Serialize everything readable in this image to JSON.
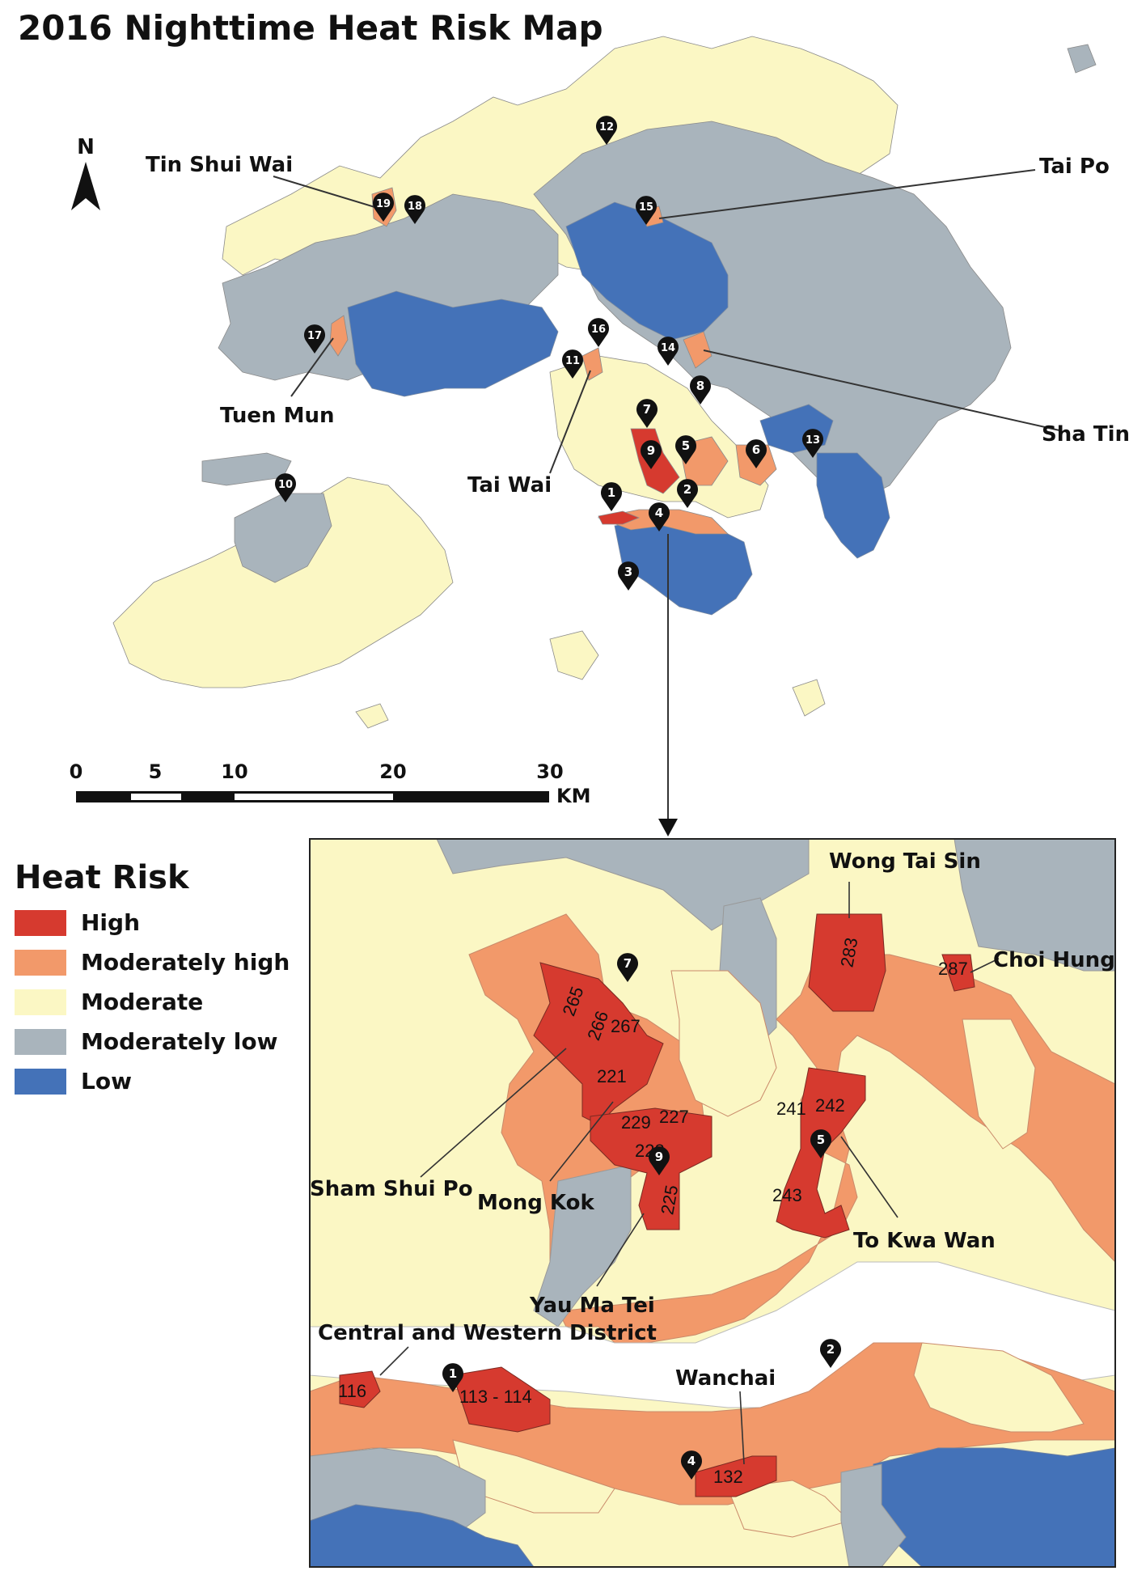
{
  "title": "2016 Nighttime Heat Risk Map",
  "north_label": "N",
  "scale": {
    "ticks": [
      "0",
      "5",
      "10",
      "20",
      "30"
    ],
    "unit": "KM"
  },
  "legend": {
    "title": "Heat Risk",
    "items": [
      {
        "label": "High",
        "color": "#d63a2f"
      },
      {
        "label": "Moderately high",
        "color": "#f2996a"
      },
      {
        "label": "Moderate",
        "color": "#fbf7c4"
      },
      {
        "label": "Moderately low",
        "color": "#a9b4bc"
      },
      {
        "label": "Low",
        "color": "#4472b8"
      }
    ]
  },
  "overview_labels": [
    "Tin Shui Wai",
    "Tai Po",
    "Tuen Mun",
    "Tai Wai",
    "Sha Tin"
  ],
  "markers": [
    "1",
    "2",
    "3",
    "4",
    "5",
    "6",
    "7",
    "8",
    "9",
    "10",
    "11",
    "12",
    "13",
    "14",
    "15",
    "16",
    "17",
    "18",
    "19"
  ],
  "inset_labels": [
    "Wong Tai Sin",
    "Choi Hung",
    "Sham Shui Po",
    "Mong Kok",
    "Yau Ma Tei",
    "To Kwa Wan",
    "Central and Western District",
    "Wanchai"
  ],
  "inset_markers": [
    "7",
    "9",
    "5",
    "2",
    "1",
    "4"
  ],
  "inset_codes": [
    "265",
    "266",
    "267",
    "221",
    "229",
    "227",
    "228",
    "225",
    "283",
    "287",
    "241",
    "242",
    "243",
    "116",
    "113 - 114",
    "132"
  ]
}
